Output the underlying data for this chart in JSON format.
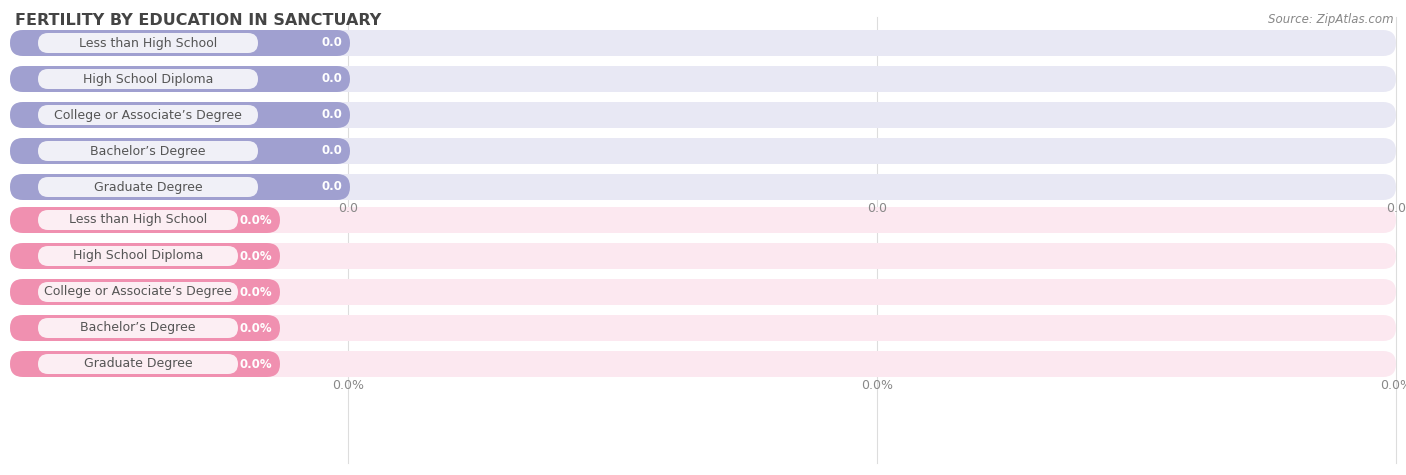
{
  "title": "FERTILITY BY EDUCATION IN SANCTUARY",
  "source": "Source: ZipAtlas.com",
  "categories": [
    "Less than High School",
    "High School Diploma",
    "College or Associate’s Degree",
    "Bachelor’s Degree",
    "Graduate Degree"
  ],
  "top_values": [
    0.0,
    0.0,
    0.0,
    0.0,
    0.0
  ],
  "bottom_values": [
    0.0,
    0.0,
    0.0,
    0.0,
    0.0
  ],
  "top_bar_color": "#a0a0d0",
  "top_bar_bg": "#e8e8f4",
  "top_pill_bg": "#ffffff",
  "bottom_bar_color": "#f090b0",
  "bottom_bar_bg": "#fce8f0",
  "bottom_pill_bg": "#ffffff",
  "bg_color": "#ffffff",
  "title_color": "#444444",
  "source_color": "#888888",
  "tick_color": "#888888",
  "label_color": "#555555",
  "value_color": "#ffffff",
  "grid_color": "#dddddd",
  "row_alt_color": "#f7f7f7"
}
